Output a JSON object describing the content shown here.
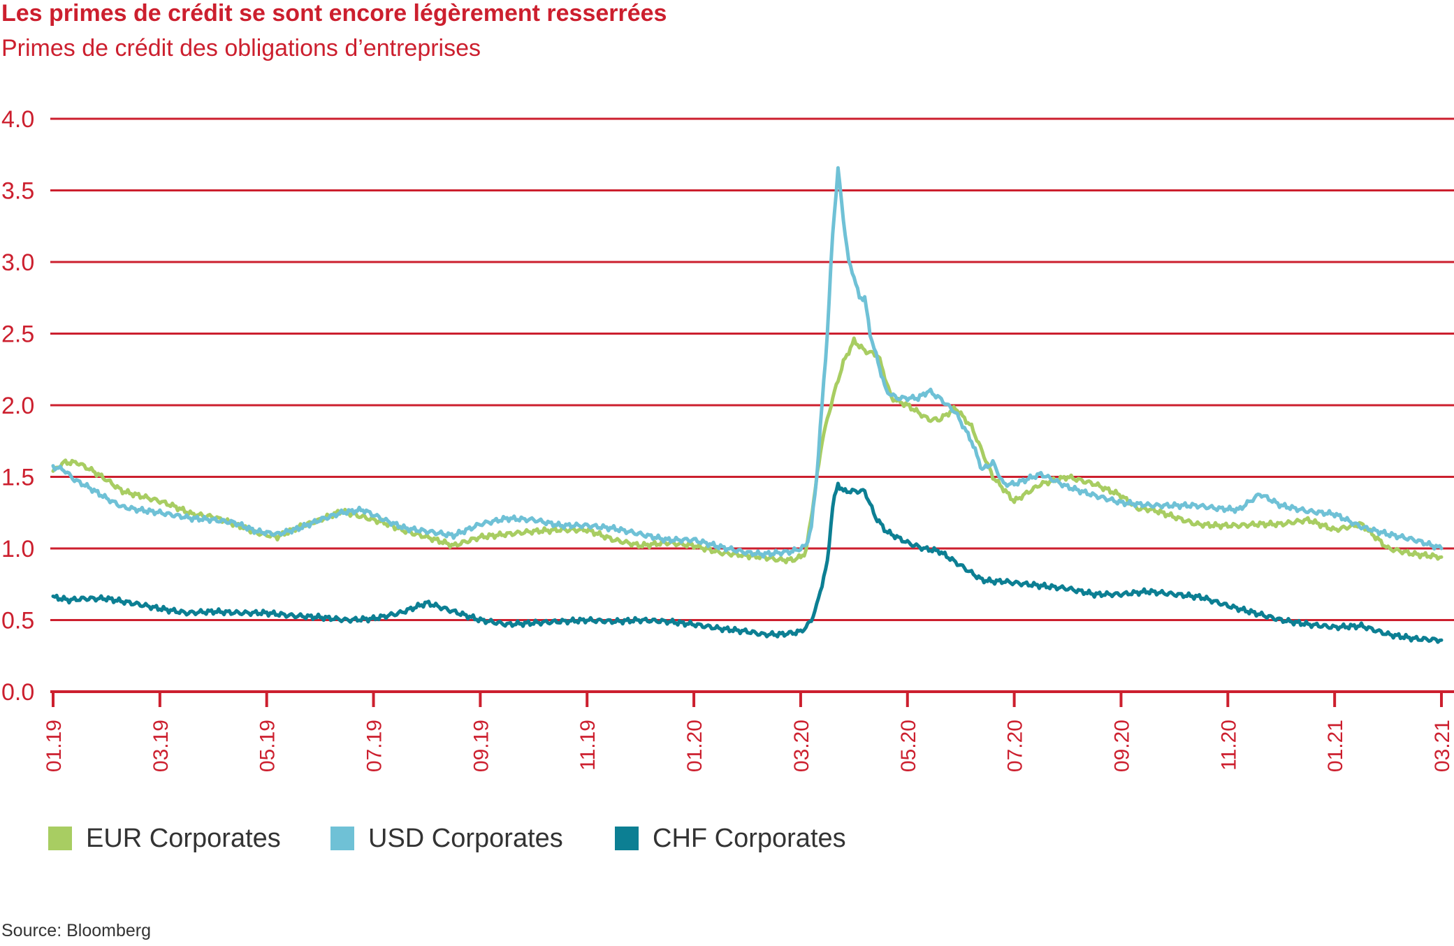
{
  "colors": {
    "accent": "#cc1f2e",
    "grid": "#cc1f2e",
    "eur": "#a8cd62",
    "usd": "#6fc1d6",
    "chf": "#0c7f93",
    "text": "#333333"
  },
  "header": {
    "title": "Les primes de crédit se sont encore légèrement resserrées",
    "subtitle": "Primes de crédit des obligations d’entreprises"
  },
  "footer": {
    "source": "Source: Bloomberg"
  },
  "chart_data": {
    "type": "line",
    "title": "Les primes de crédit se sont encore légèrement resserrées",
    "subtitle": "Primes de crédit des obligations d’entreprises",
    "xlabel": "",
    "ylabel": "",
    "ylim": [
      0,
      4
    ],
    "xlim": [
      "01.19",
      "03.21"
    ],
    "grid": true,
    "legend_position": "bottom",
    "y_ticks": [
      "0.0",
      "0.5",
      "1.0",
      "1.5",
      "2.0",
      "2.5",
      "3.0",
      "3.5",
      "4.0"
    ],
    "x_ticks": [
      "01.19",
      "03.19",
      "05.19",
      "07.19",
      "09.19",
      "11.19",
      "01.20",
      "03.20",
      "05.20",
      "07.20",
      "09.20",
      "11.20",
      "01.21",
      "03.21"
    ],
    "series": [
      {
        "name": "EUR Corporates",
        "color": "#a8cd62",
        "x": [
          0,
          0.2,
          0.45,
          0.75,
          1,
          1.3,
          1.6,
          2,
          2.3,
          2.6,
          3,
          3.4,
          3.8,
          4.2,
          4.6,
          5,
          5.4,
          5.8,
          6.2,
          6.6,
          7,
          7.5,
          8,
          8.5,
          9,
          9.5,
          10,
          10.5,
          11,
          11.5,
          12,
          12.5,
          13,
          13.3,
          13.6,
          13.85,
          14,
          14.1,
          14.25,
          14.4,
          14.6,
          14.8,
          15,
          15.2,
          15.45,
          15.7,
          16,
          16.2,
          16.4,
          16.6,
          16.9,
          17.2,
          17.6,
          18,
          18.5,
          19,
          19.5,
          20,
          20.3,
          20.6,
          21,
          21.4,
          21.8,
          22.2,
          22.6,
          23,
          23.5,
          24,
          24.5,
          25,
          25.5,
          26
        ],
        "y": [
          1.54,
          1.6,
          1.6,
          1.54,
          1.48,
          1.4,
          1.37,
          1.33,
          1.29,
          1.24,
          1.22,
          1.17,
          1.11,
          1.08,
          1.15,
          1.2,
          1.26,
          1.22,
          1.18,
          1.12,
          1.08,
          1.02,
          1.08,
          1.1,
          1.12,
          1.13,
          1.13,
          1.06,
          1.02,
          1.04,
          1.02,
          0.97,
          0.95,
          0.94,
          0.92,
          0.92,
          0.94,
          0.98,
          1.35,
          1.75,
          2.05,
          2.3,
          2.45,
          2.38,
          2.35,
          2.05,
          2,
          1.95,
          1.9,
          1.9,
          1.98,
          1.85,
          1.5,
          1.33,
          1.45,
          1.5,
          1.45,
          1.37,
          1.28,
          1.27,
          1.22,
          1.17,
          1.16,
          1.16,
          1.17,
          1.17,
          1.2,
          1.13,
          1.17,
          1.0,
          0.96,
          0.94
        ]
      },
      {
        "name": "USD Corporates",
        "color": "#6fc1d6",
        "x": [
          0,
          0.2,
          0.4,
          0.7,
          1,
          1.3,
          1.6,
          2,
          2.3,
          2.6,
          3,
          3.4,
          3.8,
          4.2,
          4.6,
          5,
          5.4,
          5.8,
          6.2,
          6.6,
          7,
          7.5,
          8,
          8.5,
          9,
          9.5,
          10,
          10.5,
          11,
          11.5,
          12,
          12.5,
          13,
          13.3,
          13.6,
          13.85,
          14,
          14.1,
          14.2,
          14.3,
          14.4,
          14.5,
          14.6,
          14.7,
          14.8,
          14.9,
          15,
          15.1,
          15.2,
          15.3,
          15.45,
          15.6,
          15.8,
          16,
          16.2,
          16.4,
          16.6,
          16.9,
          17.2,
          17.4,
          17.6,
          17.8,
          18,
          18.5,
          19,
          19.5,
          20,
          20.3,
          20.6,
          21,
          21.4,
          21.8,
          22.2,
          22.6,
          23,
          23.5,
          24,
          24.5,
          25,
          25.5,
          26
        ],
        "y": [
          1.57,
          1.55,
          1.48,
          1.42,
          1.35,
          1.29,
          1.27,
          1.25,
          1.23,
          1.21,
          1.2,
          1.18,
          1.12,
          1.1,
          1.14,
          1.2,
          1.25,
          1.27,
          1.2,
          1.14,
          1.12,
          1.09,
          1.17,
          1.21,
          1.2,
          1.16,
          1.16,
          1.14,
          1.1,
          1.06,
          1.06,
          1.01,
          0.97,
          0.96,
          0.97,
          0.98,
          1.0,
          1.02,
          1.15,
          1.5,
          2.0,
          2.5,
          3.2,
          3.65,
          3.3,
          3.0,
          2.9,
          2.75,
          2.75,
          2.5,
          2.3,
          2.1,
          2.05,
          2.05,
          2.05,
          2.1,
          2.05,
          1.95,
          1.75,
          1.55,
          1.6,
          1.45,
          1.45,
          1.52,
          1.43,
          1.37,
          1.32,
          1.31,
          1.3,
          1.3,
          1.3,
          1.28,
          1.27,
          1.38,
          1.3,
          1.26,
          1.24,
          1.15,
          1.1,
          1.06,
          1.0
        ]
      },
      {
        "name": "CHF Corporates",
        "color": "#0c7f93",
        "x": [
          0,
          0.3,
          0.6,
          1,
          1.3,
          1.6,
          2,
          2.5,
          3,
          3.5,
          4,
          4.5,
          5,
          5.5,
          6,
          6.5,
          7,
          7.5,
          8,
          8.5,
          9,
          9.5,
          10,
          10.5,
          11,
          11.5,
          12,
          12.5,
          13,
          13.3,
          13.6,
          13.85,
          14,
          14.1,
          14.2,
          14.3,
          14.4,
          14.5,
          14.6,
          14.7,
          14.8,
          15,
          15.2,
          15.4,
          15.6,
          15.8,
          16,
          16.3,
          16.6,
          17,
          17.4,
          17.6,
          17.8,
          18,
          18.5,
          19,
          19.5,
          20,
          20.5,
          21,
          21.5,
          22,
          22.5,
          23,
          23.5,
          24,
          24.5,
          25,
          25.5,
          26
        ],
        "y": [
          0.66,
          0.64,
          0.65,
          0.65,
          0.63,
          0.61,
          0.58,
          0.55,
          0.56,
          0.55,
          0.55,
          0.53,
          0.52,
          0.5,
          0.51,
          0.55,
          0.62,
          0.56,
          0.5,
          0.47,
          0.48,
          0.49,
          0.5,
          0.49,
          0.5,
          0.49,
          0.47,
          0.44,
          0.42,
          0.4,
          0.4,
          0.41,
          0.42,
          0.45,
          0.5,
          0.6,
          0.75,
          0.9,
          1.3,
          1.45,
          1.4,
          1.4,
          1.4,
          1.22,
          1.12,
          1.08,
          1.04,
          1.0,
          0.98,
          0.88,
          0.78,
          0.77,
          0.77,
          0.76,
          0.74,
          0.72,
          0.68,
          0.68,
          0.7,
          0.68,
          0.66,
          0.6,
          0.55,
          0.5,
          0.47,
          0.45,
          0.46,
          0.4,
          0.37,
          0.36
        ]
      }
    ]
  }
}
